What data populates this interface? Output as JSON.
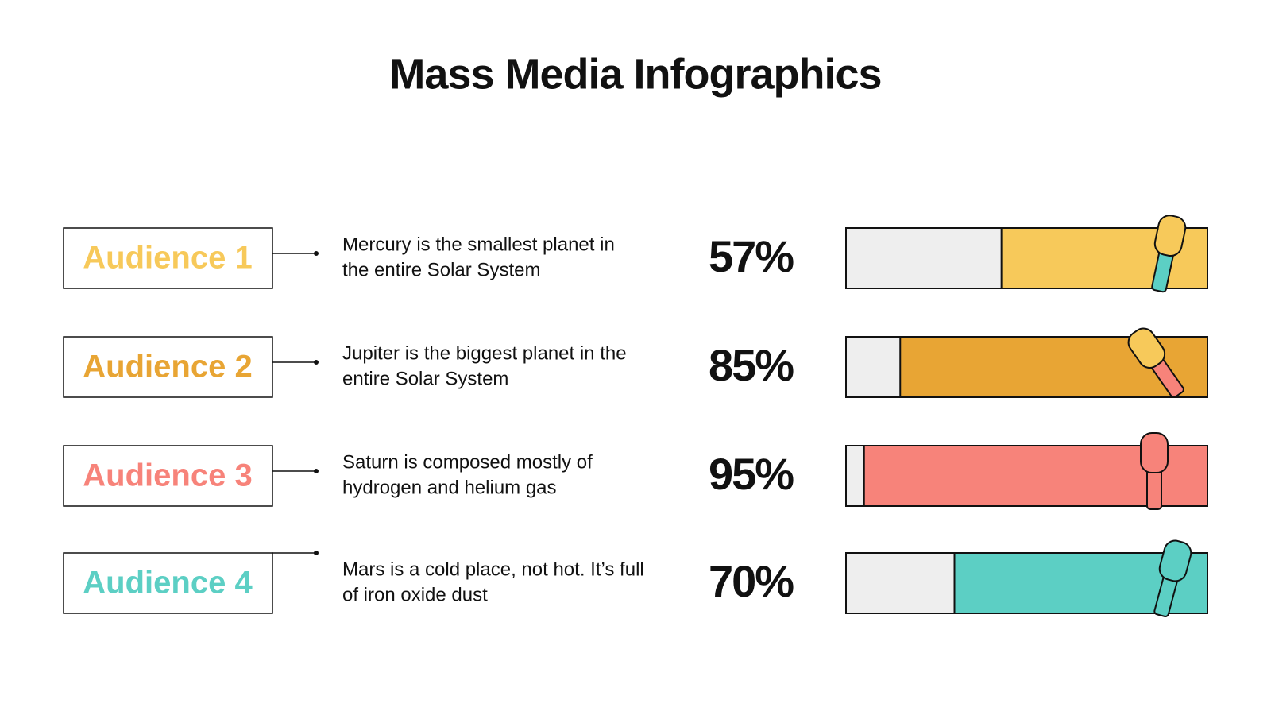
{
  "chart_data": {
    "type": "bar",
    "title": "Mass Media Infographics",
    "categories": [
      "Audience 1",
      "Audience 2",
      "Audience 3",
      "Audience 4"
    ],
    "descriptions": [
      [
        "Mercury is the smallest planet in",
        "the entire Solar System"
      ],
      [
        "Jupiter is the biggest planet in the",
        "entire Solar System"
      ],
      [
        "Saturn is composed mostly of",
        "hydrogen and helium gas"
      ],
      [
        "Mars is a cold place, not hot. It’s full",
        "of iron oxide dust"
      ]
    ],
    "values": [
      57,
      85,
      95,
      70
    ],
    "value_labels": [
      "57%",
      "85%",
      "95%",
      "70%"
    ],
    "colors": [
      "#f7c95a",
      "#e8a534",
      "#f7837a",
      "#5ccfc4"
    ],
    "xlim": [
      0,
      100
    ]
  }
}
